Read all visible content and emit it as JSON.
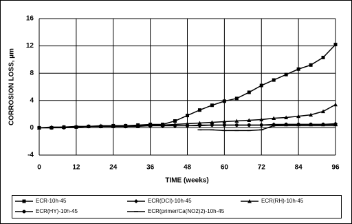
{
  "chart_data": {
    "type": "line",
    "x_label": "TIME (weeks)",
    "y_label": "CORROSION LOSS, µm",
    "x": [
      0,
      4,
      8,
      12,
      16,
      20,
      24,
      28,
      32,
      36,
      40,
      44,
      48,
      52,
      56,
      60,
      64,
      68,
      72,
      76,
      80,
      84,
      88,
      92,
      96
    ],
    "series": [
      {
        "name": "ECR-10h-45",
        "color": "#000000",
        "marker": "square",
        "values": [
          0,
          0,
          0.1,
          0.1,
          0.2,
          0.2,
          0.3,
          0.3,
          0.4,
          0.5,
          0.5,
          1.0,
          1.8,
          2.6,
          3.3,
          3.9,
          4.3,
          5.2,
          6.2,
          7.0,
          7.8,
          8.6,
          9.2,
          10.3,
          12.2
        ]
      },
      {
        "name": "ECR(DCI)-10h-45",
        "color": "#000000",
        "marker": "diamond",
        "values": [
          0,
          0,
          0.1,
          0.1,
          0.2,
          0.2,
          0.2,
          0.2,
          0.3,
          0.3,
          0.3,
          0.3,
          0.3,
          0.3,
          0.4,
          0.4,
          0.4,
          0.4,
          0.4,
          0.5,
          0.5,
          0.5,
          0.5,
          0.5,
          0.6
        ]
      },
      {
        "name": "ECR(RH)-10h-45",
        "color": "#000000",
        "marker": "triangle",
        "values": [
          0,
          0.1,
          0.1,
          0.2,
          0.2,
          0.3,
          0.3,
          0.3,
          0.3,
          0.4,
          0.4,
          0.5,
          0.6,
          0.7,
          0.8,
          0.9,
          1.0,
          1.1,
          1.2,
          1.4,
          1.5,
          1.7,
          1.9,
          2.4,
          3.4
        ]
      },
      {
        "name": "ECR(HY)-10h-45",
        "color": "#000000",
        "marker": "circle",
        "values": [
          0,
          0,
          0,
          0.1,
          0.2,
          0.2,
          0.2,
          0.2,
          0.2,
          0.3,
          0.3,
          0.3,
          0.3,
          0.4,
          0.4,
          0.4,
          0.4,
          0.4,
          0.4,
          0.4,
          0.5,
          0.5,
          0.5,
          0.5,
          0.5
        ]
      },
      {
        "name": "ECR(primer/Ca(NO2)2)-10h-45",
        "color": "#000000",
        "marker": "dash",
        "values": [
          null,
          null,
          null,
          null,
          null,
          null,
          null,
          null,
          null,
          null,
          null,
          null,
          null,
          -0.3,
          -0.3,
          -0.4,
          -0.4,
          -0.4,
          -0.3,
          0.3,
          0.3,
          0.3,
          0.3,
          0.3,
          0.3
        ]
      }
    ],
    "xlim": [
      0,
      96
    ],
    "xticks": [
      0,
      12,
      24,
      36,
      48,
      60,
      72,
      84,
      96
    ],
    "ylim": [
      -4,
      16
    ],
    "yticks": [
      -4,
      0,
      4,
      8,
      12,
      16
    ],
    "grid": true
  }
}
